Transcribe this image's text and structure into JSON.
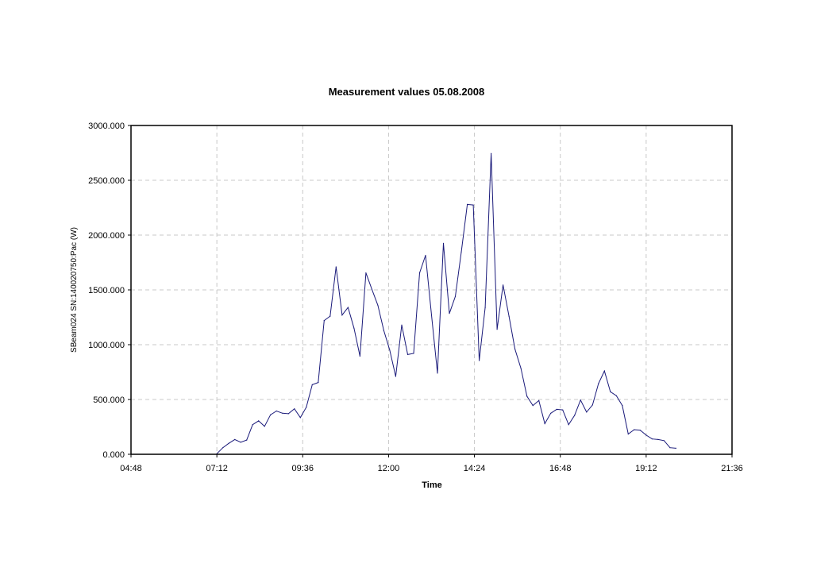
{
  "chart_data": {
    "type": "line",
    "title": "Measurement values 05.08.2008",
    "xlabel": "Time",
    "ylabel": "SBeam024 SN:140020750:Pac (W)",
    "xlim": [
      "04:48",
      "21:36"
    ],
    "ylim": [
      0,
      3000
    ],
    "xticks": [
      "04:48",
      "07:12",
      "09:36",
      "12:00",
      "14:24",
      "16:48",
      "19:12",
      "21:36"
    ],
    "yticks": [
      "0.000",
      "500.000",
      "1000.000",
      "1500.000",
      "2000.000",
      "2500.000",
      "3000.000"
    ],
    "grid": true,
    "series": [
      {
        "color": "#1a1a7a",
        "points": [
          [
            "07:12",
            5
          ],
          [
            "07:22",
            60
          ],
          [
            "07:32",
            100
          ],
          [
            "07:42",
            135
          ],
          [
            "07:52",
            110
          ],
          [
            "08:02",
            130
          ],
          [
            "08:12",
            270
          ],
          [
            "08:22",
            305
          ],
          [
            "08:32",
            255
          ],
          [
            "08:42",
            360
          ],
          [
            "08:52",
            395
          ],
          [
            "09:02",
            375
          ],
          [
            "09:12",
            370
          ],
          [
            "09:22",
            415
          ],
          [
            "09:32",
            335
          ],
          [
            "09:42",
            430
          ],
          [
            "09:52",
            635
          ],
          [
            "10:02",
            655
          ],
          [
            "10:12",
            1220
          ],
          [
            "10:22",
            1260
          ],
          [
            "10:32",
            1710
          ],
          [
            "10:42",
            1270
          ],
          [
            "10:52",
            1340
          ],
          [
            "11:02",
            1150
          ],
          [
            "11:12",
            895
          ],
          [
            "11:22",
            1655
          ],
          [
            "11:32",
            1505
          ],
          [
            "11:42",
            1360
          ],
          [
            "11:52",
            1130
          ],
          [
            "12:02",
            950
          ],
          [
            "12:12",
            710
          ],
          [
            "12:22",
            1180
          ],
          [
            "12:32",
            910
          ],
          [
            "12:42",
            920
          ],
          [
            "12:52",
            1655
          ],
          [
            "13:02",
            1815
          ],
          [
            "13:12",
            1270
          ],
          [
            "13:22",
            740
          ],
          [
            "13:32",
            1925
          ],
          [
            "13:42",
            1285
          ],
          [
            "13:52",
            1440
          ],
          [
            "14:02",
            1845
          ],
          [
            "14:12",
            2280
          ],
          [
            "14:22",
            2275
          ],
          [
            "14:32",
            855
          ],
          [
            "14:42",
            1340
          ],
          [
            "14:52",
            2745
          ],
          [
            "15:02",
            1140
          ],
          [
            "15:12",
            1545
          ],
          [
            "15:22",
            1260
          ],
          [
            "15:32",
            960
          ],
          [
            "15:42",
            785
          ],
          [
            "15:52",
            530
          ],
          [
            "16:02",
            445
          ],
          [
            "16:12",
            490
          ],
          [
            "16:22",
            280
          ],
          [
            "16:32",
            375
          ],
          [
            "16:42",
            410
          ],
          [
            "16:52",
            405
          ],
          [
            "17:02",
            270
          ],
          [
            "17:12",
            355
          ],
          [
            "17:22",
            495
          ],
          [
            "17:32",
            385
          ],
          [
            "17:42",
            450
          ],
          [
            "17:52",
            645
          ],
          [
            "18:02",
            760
          ],
          [
            "18:12",
            570
          ],
          [
            "18:22",
            535
          ],
          [
            "18:32",
            445
          ],
          [
            "18:42",
            185
          ],
          [
            "18:52",
            225
          ],
          [
            "19:02",
            220
          ],
          [
            "19:12",
            175
          ],
          [
            "19:22",
            140
          ],
          [
            "19:32",
            135
          ],
          [
            "19:42",
            125
          ],
          [
            "19:52",
            60
          ],
          [
            "20:02",
            55
          ]
        ]
      }
    ]
  }
}
